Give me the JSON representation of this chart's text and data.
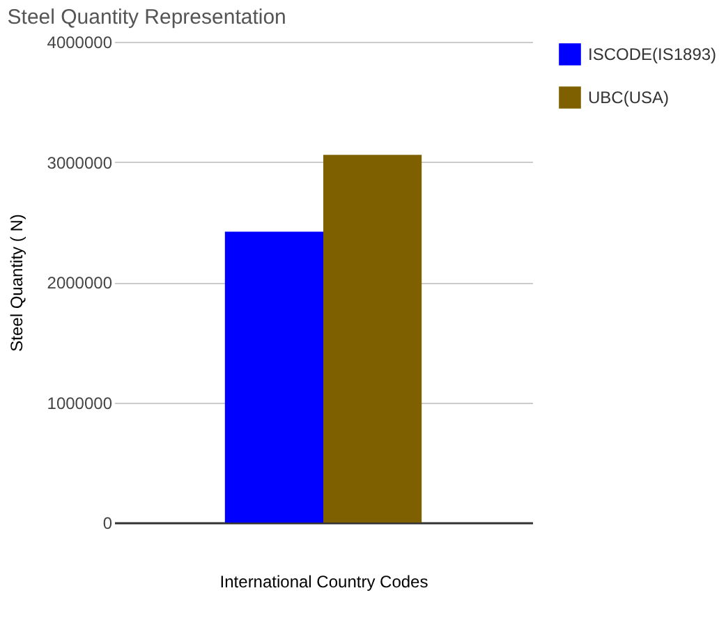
{
  "chart_data": {
    "type": "bar",
    "title": "Steel Quantity Representation",
    "xlabel": "International Country Codes",
    "ylabel": "Steel Quantity ( N)",
    "categories": [
      null
    ],
    "series": [
      {
        "name": "ISCODE(IS1893)",
        "color": "#0000ff",
        "values": [
          2420000
        ]
      },
      {
        "name": "UBC(USA)",
        "color": "#7f6000",
        "values": [
          3060000
        ]
      }
    ],
    "ylim": [
      0,
      4000000
    ],
    "yticks": [
      0,
      1000000,
      2000000,
      3000000,
      4000000
    ],
    "grid": "y",
    "legend": "top right"
  }
}
